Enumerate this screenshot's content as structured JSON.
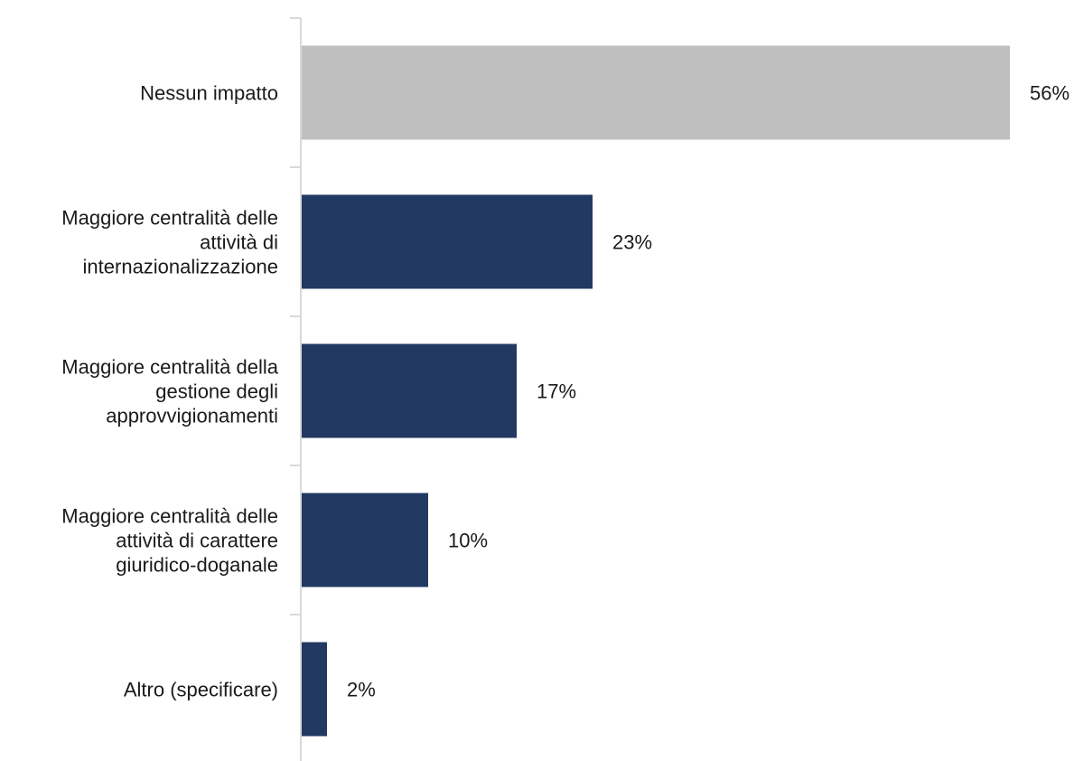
{
  "chart_data": {
    "type": "bar",
    "orientation": "horizontal",
    "categories": [
      [
        "Nessun impatto"
      ],
      [
        "Maggiore centralità delle",
        "attività di",
        "internazionalizzazione"
      ],
      [
        "Maggiore centralità della",
        "gestione degli",
        "approvvigionamenti"
      ],
      [
        "Maggiore centralità delle",
        "attività di carattere",
        "giuridico-doganale"
      ],
      [
        "Altro (specificare)"
      ]
    ],
    "values": [
      56,
      23,
      17,
      10,
      2
    ],
    "value_labels": [
      "56%",
      "23%",
      "17%",
      "10%",
      "2%"
    ],
    "unit": "%",
    "colors": [
      "#bfbfbf",
      "#223962",
      "#223962",
      "#223962",
      "#223962"
    ],
    "axis_color": "#d9d9d9",
    "grid": false,
    "legend": "none"
  }
}
